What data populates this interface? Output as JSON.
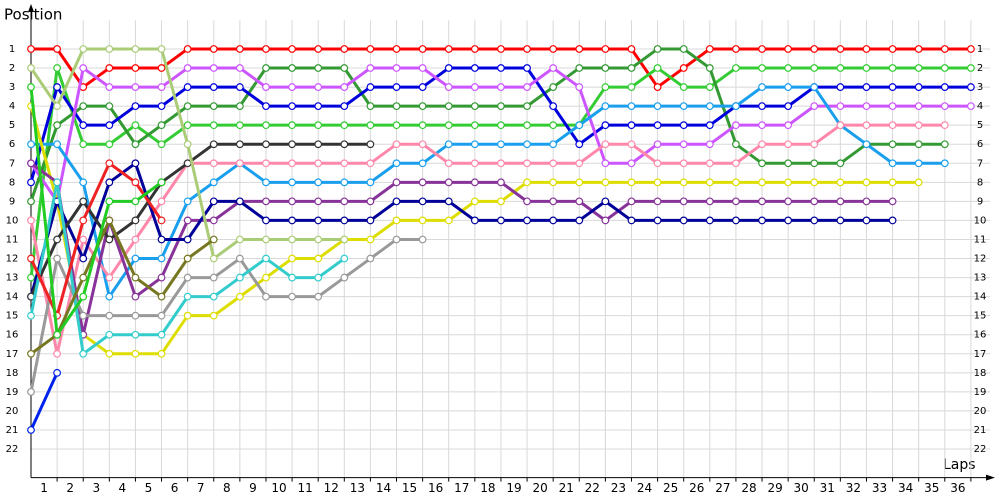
{
  "chart_data": {
    "type": "line",
    "y_label": "Position",
    "x_label": "Laps",
    "x": [
      0,
      1,
      2,
      3,
      4,
      5,
      6,
      7,
      8,
      9,
      10,
      11,
      12,
      13,
      14,
      15,
      16,
      17,
      18,
      19,
      20,
      21,
      22,
      23,
      24,
      25,
      26,
      27,
      28,
      29,
      30,
      31,
      32,
      33,
      34,
      35,
      36
    ],
    "xlim": [
      0,
      37
    ],
    "ylim": [
      -0.5,
      23.5
    ],
    "y_inverted": true,
    "grid": true,
    "xticks": [
      1,
      2,
      3,
      4,
      5,
      6,
      7,
      8,
      9,
      10,
      11,
      12,
      13,
      14,
      15,
      16,
      17,
      18,
      19,
      20,
      21,
      22,
      23,
      24,
      25,
      26,
      27,
      28,
      29,
      30,
      31,
      32,
      33,
      34,
      35,
      36
    ],
    "yticks": [
      1,
      2,
      3,
      4,
      5,
      6,
      7,
      8,
      9,
      10,
      11,
      12,
      13,
      14,
      15,
      16,
      17,
      18,
      19,
      20,
      21,
      22
    ],
    "series": [
      {
        "color": "#ff0000",
        "values": [
          1,
          1,
          3,
          2,
          2,
          2,
          1,
          1,
          1,
          1,
          1,
          1,
          1,
          1,
          1,
          1,
          1,
          1,
          1,
          1,
          1,
          1,
          1,
          1,
          3,
          2,
          1,
          1,
          1,
          1,
          1,
          1,
          1,
          1,
          1,
          1,
          1
        ]
      },
      {
        "color": "#33cc33",
        "values": [
          13,
          2,
          6,
          6,
          5,
          6,
          5,
          5,
          5,
          5,
          5,
          5,
          5,
          5,
          5,
          5,
          5,
          5,
          5,
          5,
          5,
          5,
          3,
          3,
          2,
          3,
          3,
          2,
          2,
          2,
          2,
          2,
          2,
          2,
          2,
          2,
          2
        ]
      },
      {
        "color": "#339933",
        "values": [
          9,
          5,
          4,
          4,
          6,
          5,
          4,
          4,
          4,
          2,
          2,
          2,
          2,
          4,
          4,
          4,
          4,
          4,
          4,
          4,
          3,
          2,
          2,
          2,
          1,
          1,
          2,
          6,
          7,
          7,
          7,
          7,
          6,
          6,
          6,
          6,
          null
        ]
      },
      {
        "color": "#0000dd",
        "values": [
          8,
          3,
          5,
          5,
          4,
          4,
          3,
          3,
          3,
          4,
          4,
          4,
          4,
          3,
          3,
          3,
          2,
          2,
          2,
          2,
          4,
          6,
          5,
          5,
          5,
          5,
          5,
          4,
          4,
          4,
          3,
          3,
          3,
          3,
          3,
          3,
          3
        ]
      },
      {
        "color": "#cc55ff",
        "values": [
          7,
          9,
          2,
          3,
          3,
          3,
          2,
          2,
          2,
          3,
          3,
          3,
          3,
          2,
          2,
          2,
          3,
          3,
          3,
          3,
          2,
          3,
          7,
          7,
          6,
          6,
          6,
          5,
          5,
          5,
          4,
          4,
          4,
          4,
          4,
          4,
          4
        ]
      },
      {
        "color": "#1a9fee",
        "values": [
          6,
          6,
          8,
          14,
          12,
          12,
          9,
          8,
          7,
          8,
          8,
          8,
          8,
          8,
          7,
          7,
          6,
          6,
          6,
          6,
          6,
          5,
          4,
          4,
          4,
          4,
          4,
          4,
          3,
          3,
          3,
          5,
          6,
          7,
          7,
          7,
          null
        ]
      },
      {
        "color": "#ff88aa",
        "values": [
          10,
          17,
          11,
          13,
          11,
          9,
          7,
          7,
          7,
          7,
          7,
          7,
          7,
          7,
          6,
          6,
          7,
          7,
          7,
          7,
          7,
          7,
          6,
          6,
          7,
          7,
          7,
          7,
          6,
          6,
          6,
          5,
          5,
          5,
          5,
          5,
          null
        ]
      },
      {
        "color": "#dddd00",
        "values": [
          4,
          9,
          16,
          17,
          17,
          17,
          15,
          15,
          14,
          13,
          12,
          12,
          11,
          11,
          10,
          10,
          10,
          9,
          9,
          8,
          8,
          8,
          8,
          8,
          8,
          8,
          8,
          8,
          8,
          8,
          8,
          8,
          8,
          8,
          8,
          null,
          null
        ]
      },
      {
        "color": "#883399",
        "values": [
          7,
          8,
          16,
          10,
          14,
          13,
          10,
          10,
          9,
          9,
          9,
          9,
          9,
          9,
          8,
          8,
          8,
          8,
          8,
          9,
          9,
          9,
          10,
          9,
          9,
          9,
          9,
          9,
          9,
          9,
          9,
          9,
          9,
          9,
          null,
          null,
          null
        ]
      },
      {
        "color": "#000099",
        "values": [
          14,
          9,
          12,
          8,
          7,
          11,
          11,
          9,
          9,
          10,
          10,
          10,
          10,
          10,
          9,
          9,
          9,
          10,
          10,
          10,
          10,
          10,
          9,
          10,
          10,
          10,
          10,
          10,
          10,
          10,
          10,
          10,
          10,
          10,
          null,
          null,
          null
        ]
      },
      {
        "color": "#333333",
        "values": [
          14,
          11,
          9,
          11,
          10,
          8,
          7,
          6,
          6,
          6,
          6,
          6,
          6,
          6,
          null,
          null,
          null,
          null,
          null,
          null,
          null,
          null,
          null,
          null,
          null,
          null,
          null,
          null,
          null,
          null,
          null,
          null,
          null,
          null,
          null,
          null,
          null
        ]
      },
      {
        "color": "#aacc77",
        "values": [
          2,
          4,
          1,
          1,
          1,
          1,
          6,
          12,
          11,
          11,
          11,
          11,
          11,
          null,
          null,
          null,
          null,
          null,
          null,
          null,
          null,
          null,
          null,
          null,
          null,
          null,
          null,
          null,
          null,
          null,
          null,
          null,
          null,
          null,
          null,
          null,
          null
        ]
      },
      {
        "color": "#999999",
        "values": [
          19,
          12,
          15,
          15,
          15,
          15,
          13,
          13,
          12,
          14,
          14,
          14,
          13,
          12,
          11,
          11,
          null,
          null,
          null,
          null,
          null,
          null,
          null,
          null,
          null,
          null,
          null,
          null,
          null,
          null,
          null,
          null,
          null,
          null,
          null,
          null,
          null
        ]
      },
      {
        "color": "#33cccc",
        "values": [
          15,
          8,
          17,
          16,
          16,
          16,
          14,
          14,
          13,
          12,
          13,
          13,
          12,
          null,
          null,
          null,
          null,
          null,
          null,
          null,
          null,
          null,
          null,
          null,
          null,
          null,
          null,
          null,
          null,
          null,
          null,
          null,
          null,
          null,
          null,
          null,
          null
        ]
      },
      {
        "color": "#777722",
        "values": [
          17,
          16,
          13,
          10,
          13,
          14,
          12,
          11,
          null,
          null,
          null,
          null,
          null,
          null,
          null,
          null,
          null,
          null,
          null,
          null,
          null,
          null,
          null,
          null,
          null,
          null,
          null,
          null,
          null,
          null,
          null,
          null,
          null,
          null,
          null,
          null,
          null
        ]
      },
      {
        "color": "#ee2222",
        "values": [
          12,
          15,
          10,
          7,
          8,
          10,
          null,
          null,
          null,
          null,
          null,
          null,
          null,
          null,
          null,
          null,
          null,
          null,
          null,
          null,
          null,
          null,
          null,
          null,
          null,
          null,
          null,
          null,
          null,
          null,
          null,
          null,
          null,
          null,
          null,
          null,
          null
        ]
      },
      {
        "color": "#22cc22",
        "values": [
          3,
          16,
          14,
          9,
          9,
          8,
          null,
          null,
          null,
          null,
          null,
          null,
          null,
          null,
          null,
          null,
          null,
          null,
          null,
          null,
          null,
          null,
          null,
          null,
          null,
          null,
          null,
          null,
          null,
          null,
          null,
          null,
          null,
          null,
          null,
          null,
          null
        ]
      },
      {
        "color": "#0022ee",
        "values": [
          21,
          18,
          null,
          null,
          null,
          null,
          null,
          null,
          null,
          null,
          null,
          null,
          null,
          null,
          null,
          null,
          null,
          null,
          null,
          null,
          null,
          null,
          null,
          null,
          null,
          null,
          null,
          null,
          null,
          null,
          null,
          null,
          null,
          null,
          null,
          null,
          null
        ]
      }
    ]
  }
}
